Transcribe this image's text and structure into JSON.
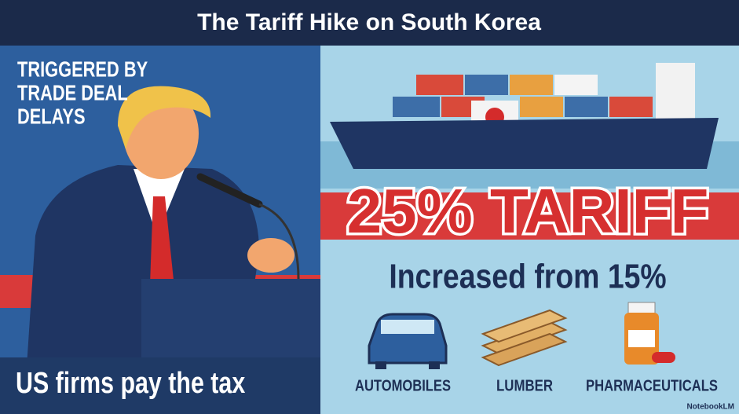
{
  "header": {
    "title": "The Tariff Hike on South Korea"
  },
  "left_panel": {
    "caption_lines": [
      "TRIGGERED BY",
      "TRADE DEAL",
      "DELAYS"
    ],
    "footer_text": "US firms pay the tax"
  },
  "right_panel": {
    "headline": "25% TARIFF",
    "subheadline": "Increased from 15%",
    "sectors": [
      "AUTOMOBILES",
      "LUMBER",
      "PHARMACEUTICALS"
    ]
  },
  "watermark": "NotebookLM"
}
